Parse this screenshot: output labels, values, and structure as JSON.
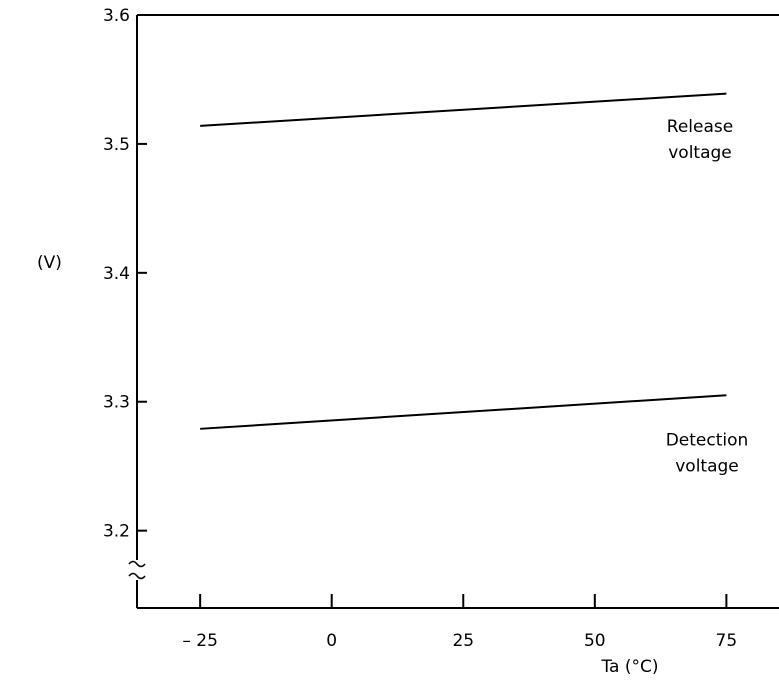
{
  "chart_data": {
    "type": "line",
    "ylabel": "(V)",
    "xlabel": "Ta (°C)",
    "x_ticks": [
      {
        "value": -25,
        "label": "– 25"
      },
      {
        "value": 0,
        "label": "0"
      },
      {
        "value": 25,
        "label": "25"
      },
      {
        "value": 50,
        "label": "50"
      },
      {
        "value": 75,
        "label": "75"
      }
    ],
    "y_ticks": [
      {
        "value": 3.2,
        "label": "3.2"
      },
      {
        "value": 3.3,
        "label": "3.3"
      },
      {
        "value": 3.4,
        "label": "3.4"
      },
      {
        "value": 3.5,
        "label": "3.5"
      },
      {
        "value": 3.6,
        "label": "3.6"
      }
    ],
    "xlim": [
      -37,
      85
    ],
    "ylim": [
      3.14,
      3.6
    ],
    "axis_break": "wavy break on y-axis below 3.2",
    "grid": false,
    "series": [
      {
        "name": "Release voltage",
        "label_lines": [
          "Release",
          "voltage"
        ],
        "x": [
          -25,
          75
        ],
        "y": [
          3.514,
          3.539
        ],
        "color": "#000000"
      },
      {
        "name": "Detection voltage",
        "label_lines": [
          "Detection",
          "voltage"
        ],
        "x": [
          -25,
          75
        ],
        "y": [
          3.279,
          3.305
        ],
        "color": "#000000"
      }
    ]
  }
}
